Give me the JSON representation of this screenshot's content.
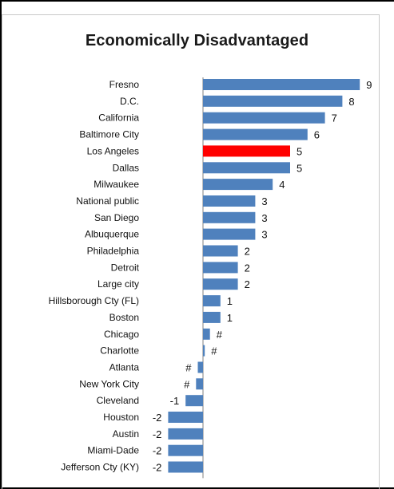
{
  "chart_data": {
    "type": "bar",
    "orientation": "horizontal",
    "title": "Economically Disadvantaged",
    "categories": [
      "Fresno",
      "D.C.",
      "California",
      "Baltimore City",
      "Los Angeles",
      "Dallas",
      "Milwaukee",
      "National public",
      "San Diego",
      "Albuquerque",
      "Philadelphia",
      "Detroit",
      "Large city",
      "Hillsborough Cty (FL)",
      "Boston",
      "Chicago",
      "Charlotte",
      "Atlanta",
      "New York City",
      "Cleveland",
      "Houston",
      "Austin",
      "Miami-Dade",
      "Jefferson Cty (KY)"
    ],
    "values": [
      9,
      8,
      7,
      6,
      5,
      5,
      4,
      3,
      3,
      3,
      2,
      2,
      2,
      1,
      1,
      0.4,
      0.1,
      -0.3,
      -0.4,
      -1,
      -2,
      -2,
      -2,
      -2
    ],
    "data_labels": [
      "9",
      "8",
      "7",
      "6",
      "5",
      "5",
      "4",
      "3",
      "3",
      "3",
      "2",
      "2",
      "2",
      "1",
      "1",
      "#",
      "#",
      "#",
      "#",
      "-1",
      "-2",
      "-2",
      "-2",
      "-2"
    ],
    "highlight_category": "Los Angeles",
    "colors": {
      "default": "#4f81bd",
      "highlight": "#ff0000"
    },
    "axis": {
      "show_ticks": false,
      "show_grid": false,
      "baseline": 0
    }
  }
}
